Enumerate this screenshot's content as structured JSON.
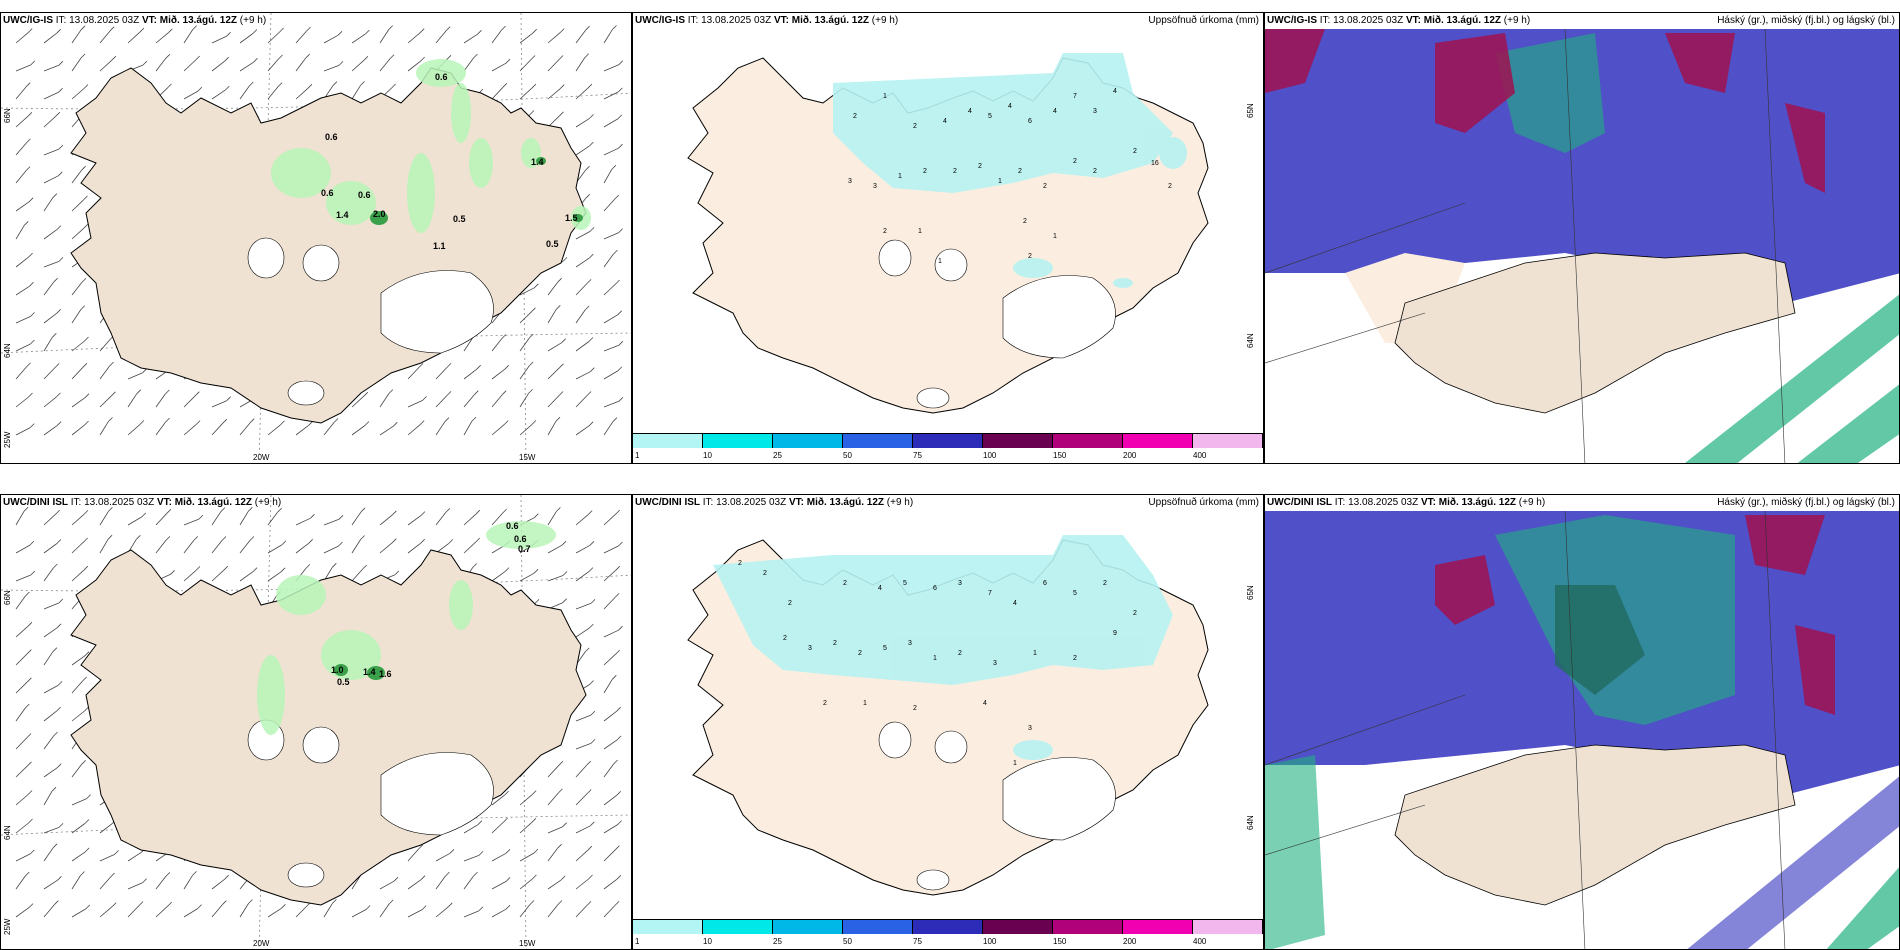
{
  "panels": [
    {
      "row": "top",
      "left": {
        "model": "UWC/IG-IS",
        "it_label": "IT:",
        "it_value": "13.08.2025 03Z",
        "vt_label": "VT:",
        "vt_value": "Mið. 13.ágú. 12Z",
        "offset": "(+9 h)",
        "lat_labels": [
          "66N",
          "64N"
        ],
        "lon_labels": [
          "25W",
          "20W",
          "15W"
        ],
        "value_labels": [
          "0.6",
          "0.6",
          "0.6",
          "0.6",
          "1.4",
          "2.0",
          "0.5",
          "1.1",
          "1.4",
          "1.5",
          "0.5"
        ]
      },
      "middle": {
        "model": "UWC/IG-IS",
        "it_label": "IT:",
        "it_value": "13.08.2025 03Z",
        "vt_label": "VT:",
        "vt_value": "Mið. 13.ágú. 12Z",
        "offset": "(+9 h)",
        "title_right": "Uppsöfnuð úrkoma (mm)",
        "lat_labels": [
          "65N",
          "64N"
        ]
      },
      "right": {
        "model": "UWC/IG-IS",
        "it_label": "IT:",
        "it_value": "13.08.2025 03Z",
        "vt_label": "VT:",
        "vt_value": "Mið. 13.ágú. 12Z",
        "offset": "(+9 h)",
        "title_right": "Háský (gr.), miðský (fj.bl.) og lágský (bl.)"
      }
    },
    {
      "row": "bottom",
      "left": {
        "model": "UWC/DINI ISL",
        "it_label": "IT:",
        "it_value": "13.08.2025 03Z",
        "vt_label": "VT:",
        "vt_value": "Mið. 13.ágú. 12Z",
        "offset": "(+9 h)",
        "lat_labels": [
          "66N",
          "64N"
        ],
        "lon_labels": [
          "25W",
          "20W",
          "15W"
        ],
        "value_labels": [
          "0.6",
          "0.6",
          "0.7",
          "1.0",
          "0.5",
          "1.4",
          "1.6"
        ]
      },
      "middle": {
        "model": "UWC/DINI ISL",
        "it_label": "IT:",
        "it_value": "13.08.2025 03Z",
        "vt_label": "VT:",
        "vt_value": "Mið. 13.ágú. 12Z",
        "offset": "(+9 h)",
        "title_right": "Uppsöfnuð úrkoma (mm)",
        "lat_labels": [
          "65N",
          "64N"
        ]
      },
      "right": {
        "model": "UWC/DINI ISL",
        "it_label": "IT:",
        "it_value": "13.08.2025 03Z",
        "vt_label": "VT:",
        "vt_value": "Mið. 13.ágú. 12Z",
        "offset": "(+9 h)",
        "title_right": "Háský (gr.), miðský (fj.bl.) og lágský (bl.)"
      }
    }
  ],
  "colorbar": {
    "ticks": [
      "1",
      "10",
      "25",
      "50",
      "75",
      "100",
      "150",
      "200",
      "400"
    ],
    "colors": [
      "#b3f5f5",
      "#00e8e8",
      "#00b8e8",
      "#2a62e6",
      "#2c2cb8",
      "#6a0050",
      "#b0007a",
      "#f000b0",
      "#f2b8ee"
    ]
  },
  "colors": {
    "land": "#efe2d2",
    "land_mid": "#fbeee0",
    "precip_light": "#b8f5b8",
    "precip_mid": "#3aa04a",
    "precip_cyan": "#b6f2f2",
    "cloud_low": "#5050c8",
    "cloud_high": "#20b080",
    "cloud_mid": "#a01050"
  }
}
